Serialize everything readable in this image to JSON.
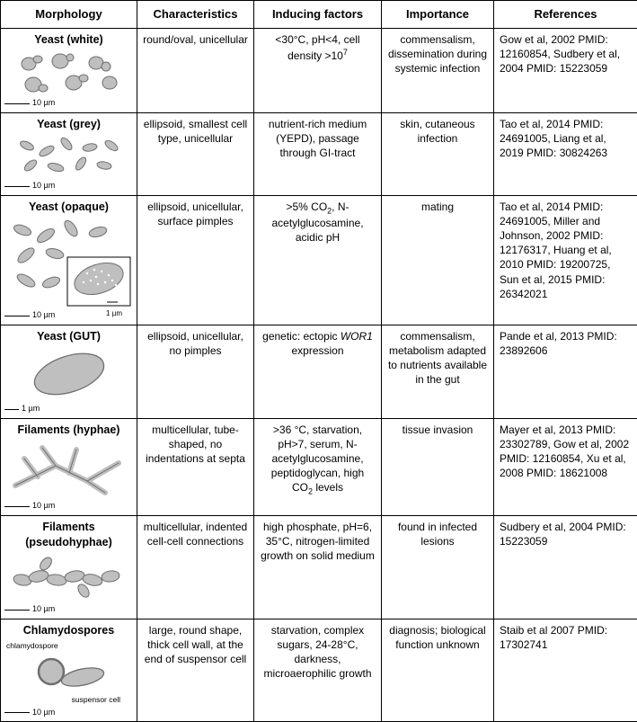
{
  "colors": {
    "cell_fill": "#bfbfbf",
    "cell_stroke": "#6e6e6e",
    "white_dot": "#ffffff",
    "background": "#ffffff",
    "border": "#000000",
    "text": "#000000"
  },
  "headers": {
    "morphology": "Morphology",
    "characteristics": "Characteristics",
    "inducing": "Inducing factors",
    "importance": "Importance",
    "references": "References"
  },
  "rows": [
    {
      "title": "Yeast (white)",
      "scale": "10 µm",
      "characteristics": "round/oval, unicellular",
      "inducing_html": "&lt;30°C, pH&lt;4, cell density &gt;10<sup>7</sup>",
      "importance": "commensalism, dissemination during systemic infection",
      "references": "Gow et al, 2002 PMID: 12160854, Sudbery et al,  2004 PMID: 15223059"
    },
    {
      "title": "Yeast (grey)",
      "scale": "10 µm",
      "characteristics": "ellipsoid, smallest cell type, unicellular",
      "inducing_html": "nutrient-rich medium (YEPD), passage through GI-tract",
      "importance": "skin, cutaneous infection",
      "references": "Tao et al, 2014 PMID: 24691005, Liang et al, 2019 PMID: 30824263"
    },
    {
      "title": "Yeast (opaque)",
      "scale": "10 µm",
      "inset_scale": "1 µm",
      "characteristics": "ellipsoid, unicellular, surface pimples",
      "inducing_html": "&gt;5% CO<sub>2</sub>, N-acetylglucosamine, acidic pH",
      "importance": "mating",
      "references": "Tao et al, 2014 PMID: 24691005, Miller and Johnson, 2002 PMID: 12176317, Huang et al, 2010 PMID: 19200725, Sun et al, 2015 PMID: 26342021"
    },
    {
      "title": "Yeast (GUT)",
      "scale": "1 µm",
      "characteristics": "ellipsoid, unicellular, no pimples",
      "inducing_html": "genetic: ectopic <em>WOR1</em> expression",
      "importance": "commensalism, metabolism adapted to nutrients available in the gut",
      "references": "Pande et al, 2013 PMID: 23892606"
    },
    {
      "title": "Filaments (hyphae)",
      "scale": "10 µm",
      "characteristics": "multicellular, tube-shaped, no indentations at septa",
      "inducing_html": "&gt;36 °C, starvation, pH&gt;7, serum, N-acetylglucosamine, peptidoglycan, high CO<sub>2</sub> levels",
      "importance": "tissue invasion",
      "references": "Mayer et al, 2013 PMID: 23302789, Gow et al, 2002 PMID: 12160854, Xu et al, 2008 PMID: 18621008"
    },
    {
      "title": "Filaments (pseudohyphae)",
      "scale": "10 µm",
      "characteristics": "multicellular, indented cell-cell connections",
      "inducing_html": "high phosphate, pH=6, 35°C, nitrogen-limited growth on solid medium",
      "importance": "found in infected lesions",
      "references": "Sudbery et al, 2004 PMID: 15223059"
    },
    {
      "title": "Chlamydospores",
      "scale": "10 µm",
      "label1": "chlamydospore",
      "label2": "suspensor cell",
      "characteristics": "large, round shape, thick cell wall, at the end of suspensor cell",
      "inducing_html": "starvation, complex sugars, 24-28°C, darkness, microaerophilic growth",
      "importance": "diagnosis; biological function unknown",
      "references": "Staib et al 2007 PMID: 17302741"
    }
  ]
}
